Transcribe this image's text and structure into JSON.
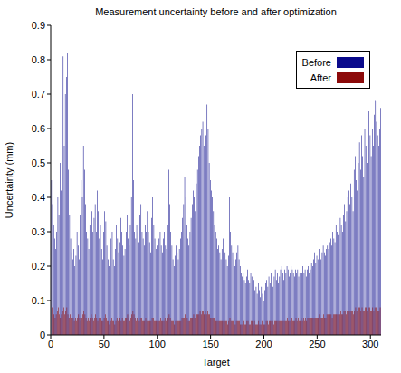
{
  "chart_data": {
    "type": "bar",
    "title": "Measurement uncertainty before and after optimization",
    "x_label": "Target",
    "y_label": "Uncertainty (mm)",
    "legend": "top-right",
    "grid": false,
    "xlim": [
      0,
      310
    ],
    "xticks": [
      0,
      50,
      100,
      150,
      200,
      250,
      300
    ],
    "ylim": [
      0,
      0.9
    ],
    "yticks": [
      0,
      0.1,
      0.2,
      0.3,
      0.4,
      0.5,
      0.6,
      0.7,
      0.8,
      0.9
    ],
    "x": [
      1,
      2,
      3,
      4,
      5,
      6,
      7,
      8,
      9,
      10,
      11,
      12,
      13,
      14,
      15,
      16,
      17,
      18,
      19,
      20,
      21,
      22,
      23,
      24,
      25,
      26,
      27,
      28,
      29,
      30,
      31,
      32,
      33,
      34,
      35,
      36,
      37,
      38,
      39,
      40,
      41,
      42,
      43,
      44,
      45,
      46,
      47,
      48,
      49,
      50,
      51,
      52,
      53,
      54,
      55,
      56,
      57,
      58,
      59,
      60,
      61,
      62,
      63,
      64,
      65,
      66,
      67,
      68,
      69,
      70,
      71,
      72,
      73,
      74,
      75,
      76,
      77,
      78,
      79,
      80,
      81,
      82,
      83,
      84,
      85,
      86,
      87,
      88,
      89,
      90,
      91,
      92,
      93,
      94,
      95,
      96,
      97,
      98,
      99,
      100,
      101,
      102,
      103,
      104,
      105,
      106,
      107,
      108,
      109,
      110,
      111,
      112,
      113,
      114,
      115,
      116,
      117,
      118,
      119,
      120,
      121,
      122,
      123,
      124,
      125,
      126,
      127,
      128,
      129,
      130,
      131,
      132,
      133,
      134,
      135,
      136,
      137,
      138,
      139,
      140,
      141,
      142,
      143,
      144,
      145,
      146,
      147,
      148,
      149,
      150,
      151,
      152,
      153,
      154,
      155,
      156,
      157,
      158,
      159,
      160,
      161,
      162,
      163,
      164,
      165,
      166,
      167,
      168,
      169,
      170,
      171,
      172,
      173,
      174,
      175,
      176,
      177,
      178,
      179,
      180,
      181,
      182,
      183,
      184,
      185,
      186,
      187,
      188,
      189,
      190,
      191,
      192,
      193,
      194,
      195,
      196,
      197,
      198,
      199,
      200,
      201,
      202,
      203,
      204,
      205,
      206,
      207,
      208,
      209,
      210,
      211,
      212,
      213,
      214,
      215,
      216,
      217,
      218,
      219,
      220,
      221,
      222,
      223,
      224,
      225,
      226,
      227,
      228,
      229,
      230,
      231,
      232,
      233,
      234,
      235,
      236,
      237,
      238,
      239,
      240,
      241,
      242,
      243,
      244,
      245,
      246,
      247,
      248,
      249,
      250,
      251,
      252,
      253,
      254,
      255,
      256,
      257,
      258,
      259,
      260,
      261,
      262,
      263,
      264,
      265,
      266,
      267,
      268,
      269,
      270,
      271,
      272,
      273,
      274,
      275,
      276,
      277,
      278,
      279,
      280,
      281,
      282,
      283,
      284,
      285,
      286,
      287,
      288,
      289,
      290,
      291,
      292,
      293,
      294,
      295,
      296,
      297,
      298,
      299,
      300,
      301,
      302,
      303,
      304,
      305,
      306,
      307,
      308,
      309,
      310
    ],
    "series": [
      {
        "name": "Before",
        "color": "#0a0a8c",
        "values": [
          0.45,
          0.38,
          0.32,
          0.28,
          0.25,
          0.3,
          0.4,
          0.35,
          0.5,
          0.42,
          0.62,
          0.81,
          0.55,
          0.7,
          0.75,
          0.82,
          0.48,
          0.35,
          0.28,
          0.24,
          0.22,
          0.25,
          0.2,
          0.23,
          0.3,
          0.26,
          0.22,
          0.35,
          0.45,
          0.4,
          0.55,
          0.48,
          0.38,
          0.3,
          0.28,
          0.25,
          0.32,
          0.4,
          0.36,
          0.3,
          0.34,
          0.38,
          0.3,
          0.42,
          0.36,
          0.28,
          0.32,
          0.25,
          0.22,
          0.3,
          0.36,
          0.33,
          0.26,
          0.22,
          0.2,
          0.24,
          0.28,
          0.3,
          0.22,
          0.2,
          0.25,
          0.32,
          0.28,
          0.24,
          0.27,
          0.34,
          0.3,
          0.26,
          0.23,
          0.25,
          0.3,
          0.35,
          0.28,
          0.26,
          0.32,
          0.4,
          0.7,
          0.45,
          0.3,
          0.28,
          0.32,
          0.3,
          0.27,
          0.35,
          0.38,
          0.3,
          0.28,
          0.26,
          0.32,
          0.3,
          0.36,
          0.3,
          0.27,
          0.24,
          0.34,
          0.4,
          0.32,
          0.28,
          0.25,
          0.26,
          0.29,
          0.28,
          0.3,
          0.26,
          0.24,
          0.28,
          0.3,
          0.26,
          0.25,
          0.32,
          0.48,
          0.38,
          0.3,
          0.26,
          0.22,
          0.2,
          0.23,
          0.26,
          0.24,
          0.22,
          0.25,
          0.28,
          0.3,
          0.34,
          0.38,
          0.46,
          0.4,
          0.32,
          0.28,
          0.26,
          0.3,
          0.34,
          0.38,
          0.42,
          0.4,
          0.36,
          0.44,
          0.48,
          0.52,
          0.55,
          0.58,
          0.6,
          0.62,
          0.55,
          0.64,
          0.58,
          0.67,
          0.6,
          0.5,
          0.45,
          0.42,
          0.4,
          0.36,
          0.32,
          0.3,
          0.28,
          0.25,
          0.26,
          0.24,
          0.22,
          0.25,
          0.28,
          0.26,
          0.24,
          0.22,
          0.2,
          0.23,
          0.4,
          0.3,
          0.26,
          0.24,
          0.22,
          0.2,
          0.22,
          0.24,
          0.26,
          0.22,
          0.2,
          0.18,
          0.17,
          0.18,
          0.16,
          0.15,
          0.17,
          0.19,
          0.16,
          0.15,
          0.18,
          0.17,
          0.14,
          0.16,
          0.13,
          0.14,
          0.12,
          0.15,
          0.13,
          0.11,
          0.14,
          0.12,
          0.1,
          0.13,
          0.15,
          0.16,
          0.14,
          0.17,
          0.15,
          0.18,
          0.16,
          0.14,
          0.17,
          0.19,
          0.16,
          0.18,
          0.15,
          0.17,
          0.19,
          0.2,
          0.18,
          0.16,
          0.19,
          0.18,
          0.2,
          0.19,
          0.17,
          0.18,
          0.2,
          0.19,
          0.18,
          0.17,
          0.19,
          0.18,
          0.19,
          0.17,
          0.18,
          0.19,
          0.18,
          0.2,
          0.18,
          0.19,
          0.17,
          0.19,
          0.2,
          0.18,
          0.19,
          0.21,
          0.2,
          0.22,
          0.24,
          0.21,
          0.23,
          0.22,
          0.25,
          0.23,
          0.22,
          0.24,
          0.26,
          0.24,
          0.23,
          0.25,
          0.26,
          0.25,
          0.27,
          0.28,
          0.26,
          0.3,
          0.28,
          0.27,
          0.32,
          0.3,
          0.29,
          0.31,
          0.34,
          0.32,
          0.3,
          0.35,
          0.38,
          0.33,
          0.36,
          0.4,
          0.42,
          0.38,
          0.44,
          0.4,
          0.36,
          0.48,
          0.52,
          0.45,
          0.42,
          0.5,
          0.56,
          0.48,
          0.58,
          0.52,
          0.46,
          0.6,
          0.55,
          0.5,
          0.62,
          0.65,
          0.58,
          0.52,
          0.6,
          0.55,
          0.64,
          0.68,
          0.62,
          0.58,
          0.55,
          0.6,
          0.66
        ]
      },
      {
        "name": "After",
        "color": "#8c0a0a",
        "values": [
          0.08,
          0.07,
          0.06,
          0.05,
          0.06,
          0.07,
          0.08,
          0.06,
          0.05,
          0.06,
          0.07,
          0.08,
          0.06,
          0.07,
          0.08,
          0.06,
          0.05,
          0.06,
          0.05,
          0.04,
          0.05,
          0.04,
          0.05,
          0.04,
          0.05,
          0.06,
          0.05,
          0.04,
          0.05,
          0.06,
          0.07,
          0.06,
          0.05,
          0.04,
          0.05,
          0.04,
          0.05,
          0.06,
          0.05,
          0.04,
          0.05,
          0.06,
          0.05,
          0.04,
          0.05,
          0.04,
          0.05,
          0.04,
          0.04,
          0.05,
          0.06,
          0.05,
          0.04,
          0.04,
          0.03,
          0.04,
          0.05,
          0.04,
          0.04,
          0.03,
          0.04,
          0.05,
          0.04,
          0.04,
          0.05,
          0.04,
          0.05,
          0.04,
          0.04,
          0.05,
          0.05,
          0.06,
          0.05,
          0.04,
          0.05,
          0.06,
          0.07,
          0.06,
          0.05,
          0.04,
          0.05,
          0.04,
          0.04,
          0.05,
          0.05,
          0.04,
          0.04,
          0.04,
          0.05,
          0.04,
          0.05,
          0.04,
          0.04,
          0.04,
          0.05,
          0.05,
          0.04,
          0.04,
          0.04,
          0.04,
          0.04,
          0.04,
          0.05,
          0.04,
          0.04,
          0.04,
          0.05,
          0.04,
          0.04,
          0.05,
          0.06,
          0.05,
          0.04,
          0.04,
          0.04,
          0.03,
          0.04,
          0.04,
          0.04,
          0.04,
          0.04,
          0.04,
          0.05,
          0.05,
          0.05,
          0.06,
          0.05,
          0.05,
          0.04,
          0.04,
          0.05,
          0.05,
          0.05,
          0.06,
          0.05,
          0.05,
          0.06,
          0.06,
          0.06,
          0.07,
          0.06,
          0.07,
          0.07,
          0.06,
          0.07,
          0.06,
          0.07,
          0.06,
          0.06,
          0.05,
          0.05,
          0.05,
          0.05,
          0.04,
          0.04,
          0.04,
          0.04,
          0.04,
          0.04,
          0.04,
          0.04,
          0.04,
          0.04,
          0.04,
          0.04,
          0.03,
          0.04,
          0.05,
          0.04,
          0.04,
          0.04,
          0.04,
          0.03,
          0.04,
          0.04,
          0.04,
          0.04,
          0.03,
          0.03,
          0.03,
          0.04,
          0.03,
          0.03,
          0.04,
          0.04,
          0.03,
          0.03,
          0.04,
          0.04,
          0.03,
          0.04,
          0.03,
          0.03,
          0.03,
          0.04,
          0.03,
          0.03,
          0.04,
          0.03,
          0.03,
          0.03,
          0.04,
          0.04,
          0.03,
          0.04,
          0.04,
          0.04,
          0.04,
          0.03,
          0.04,
          0.04,
          0.04,
          0.04,
          0.04,
          0.04,
          0.04,
          0.05,
          0.04,
          0.04,
          0.04,
          0.04,
          0.05,
          0.04,
          0.04,
          0.04,
          0.05,
          0.04,
          0.04,
          0.04,
          0.05,
          0.04,
          0.05,
          0.04,
          0.04,
          0.05,
          0.04,
          0.05,
          0.04,
          0.05,
          0.04,
          0.05,
          0.05,
          0.04,
          0.05,
          0.05,
          0.05,
          0.05,
          0.05,
          0.05,
          0.05,
          0.05,
          0.06,
          0.05,
          0.05,
          0.05,
          0.06,
          0.05,
          0.05,
          0.06,
          0.06,
          0.05,
          0.06,
          0.06,
          0.05,
          0.06,
          0.06,
          0.06,
          0.06,
          0.06,
          0.06,
          0.06,
          0.07,
          0.06,
          0.06,
          0.07,
          0.07,
          0.06,
          0.07,
          0.07,
          0.07,
          0.07,
          0.07,
          0.07,
          0.06,
          0.07,
          0.08,
          0.07,
          0.07,
          0.08,
          0.08,
          0.07,
          0.08,
          0.07,
          0.07,
          0.08,
          0.08,
          0.07,
          0.08,
          0.08,
          0.07,
          0.07,
          0.08,
          0.07,
          0.08,
          0.08,
          0.07,
          0.07,
          0.07,
          0.08,
          0.08
        ]
      }
    ]
  }
}
